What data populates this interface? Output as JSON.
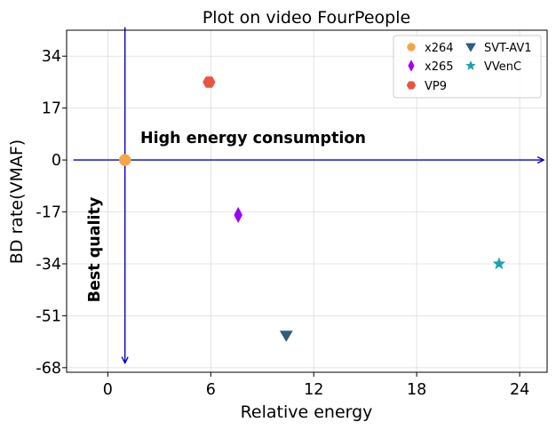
{
  "chart_data": {
    "type": "scatter",
    "title": "Plot on video FourPeople",
    "xlabel": "Relative energy",
    "ylabel": "BD rate(VMAF)",
    "xlim": [
      -2.4,
      25.6
    ],
    "ylim": [
      -69.5,
      42.5
    ],
    "xticks": [
      0,
      6,
      12,
      18,
      24
    ],
    "yticks": [
      34,
      17,
      0,
      -17,
      -34,
      -51,
      -68
    ],
    "grid": true,
    "legend_position": "top-right",
    "series": [
      {
        "name": "x264",
        "marker": "circle",
        "color": "#f4a742",
        "points": [
          {
            "x": 1.0,
            "y": 0.0
          }
        ]
      },
      {
        "name": "x265",
        "marker": "thin-diamond",
        "color": "#a100f2",
        "points": [
          {
            "x": 7.6,
            "y": -18.0
          }
        ]
      },
      {
        "name": "VP9",
        "marker": "hexagon",
        "color": "#e8553f",
        "points": [
          {
            "x": 5.9,
            "y": 25.5
          }
        ]
      },
      {
        "name": "SVT-AV1",
        "marker": "triangle-down",
        "color": "#2d5d82",
        "points": [
          {
            "x": 10.4,
            "y": -57.5
          }
        ]
      },
      {
        "name": "VVenC",
        "marker": "star",
        "color": "#17a3b0",
        "points": [
          {
            "x": 22.8,
            "y": -34.0
          }
        ]
      }
    ],
    "annotations": {
      "high_energy": "High energy consumption",
      "best_quality": "Best quality"
    },
    "axis_arrows": {
      "color": "#0000cc",
      "horizontal": {
        "y": 0,
        "x_from": -2.0,
        "x_to": 25.4
      },
      "vertical": {
        "x": 1.0,
        "y_from": 43.5,
        "y_to": -66.5
      }
    }
  }
}
